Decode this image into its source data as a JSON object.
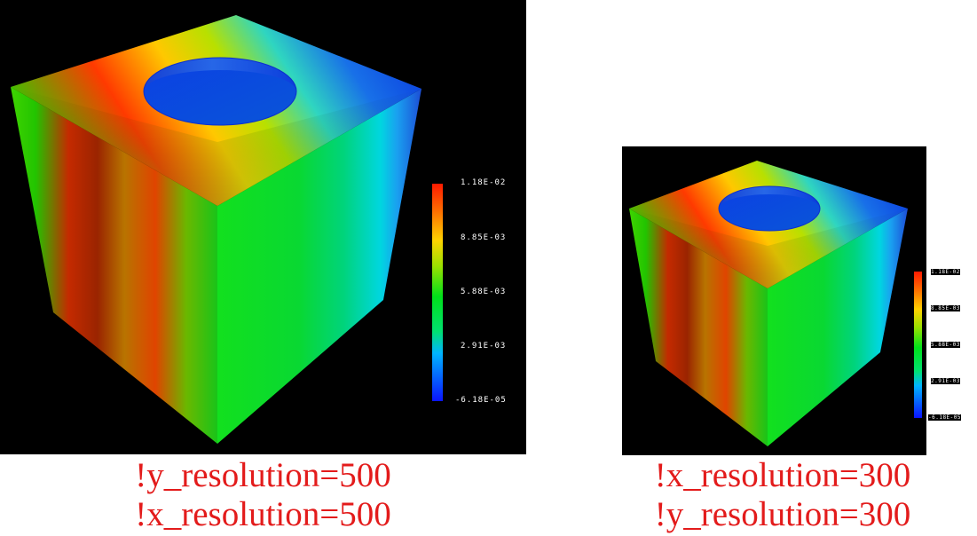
{
  "colors": {
    "background": "#ffffff",
    "panel": "#000000",
    "caption": "#e31b1b",
    "scale_text": "#ffffff"
  },
  "panels": [
    {
      "colorbar": {
        "labels": [
          "1.18E-02",
          "8.85E-03",
          "5.88E-03",
          "2.91E-03",
          "-6.18E-05"
        ]
      },
      "caption": {
        "line1": "!y_resolution=500",
        "line2": "!x_resolution=500"
      }
    },
    {
      "colorbar": {
        "labels": [
          "1.18E-02",
          "8.85E-03",
          "5.88E-03",
          "2.91E-03",
          "-6.18E-05"
        ]
      },
      "caption": {
        "line1": "!x_resolution=300",
        "line2": "!y_resolution=300"
      }
    }
  ]
}
